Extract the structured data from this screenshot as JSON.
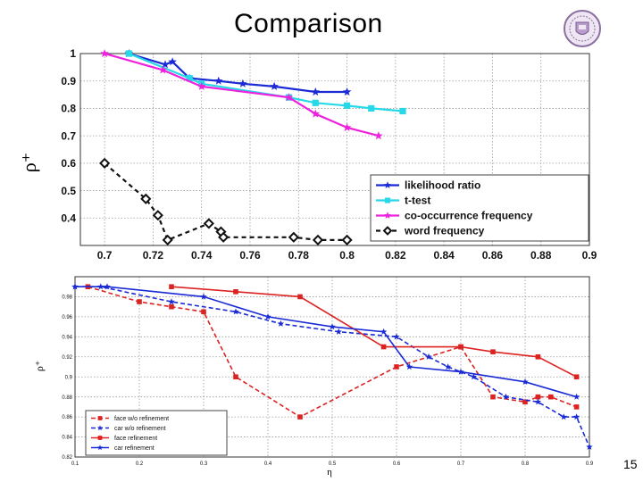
{
  "slide": {
    "title": "Comparison",
    "page_number": "15"
  },
  "chart_data": [
    {
      "type": "line",
      "xlabel": "",
      "ylabel": "ρ⁺",
      "xlim": [
        0.69,
        0.9
      ],
      "ylim": [
        0.3,
        1.0
      ],
      "x_ticks": [
        0.7,
        0.72,
        0.74,
        0.76,
        0.78,
        0.8,
        0.82,
        0.84,
        0.86,
        0.88,
        0.9
      ],
      "x_tick_labels": [
        "0.7",
        "0.72",
        "0.74",
        "0.76",
        "0.78",
        "0.8",
        "0.82",
        "0.84",
        "0.86",
        "0.88",
        "0.9"
      ],
      "y_ticks": [
        0.4,
        0.5,
        0.6,
        0.7,
        0.8,
        0.9,
        1.0
      ],
      "y_tick_labels": [
        "0.4",
        "0.5",
        "0.6",
        "0.7",
        "0.8",
        "0.9",
        "1"
      ],
      "grid": true,
      "legend_position": "bottom-right",
      "series": [
        {
          "name": "likelihood ratio",
          "color": "#1a2bd6",
          "dash": "solid",
          "marker": "star",
          "x": [
            0.71,
            0.725,
            0.728,
            0.735,
            0.747,
            0.757,
            0.77,
            0.787,
            0.8
          ],
          "y": [
            1.0,
            0.96,
            0.97,
            0.91,
            0.9,
            0.89,
            0.88,
            0.86,
            0.86
          ]
        },
        {
          "name": "t-test",
          "color": "#27d8e8",
          "dash": "solid",
          "marker": "square",
          "x": [
            0.71,
            0.735,
            0.74,
            0.776,
            0.787,
            0.8,
            0.81,
            0.823
          ],
          "y": [
            1.0,
            0.91,
            0.89,
            0.84,
            0.82,
            0.81,
            0.8,
            0.79
          ]
        },
        {
          "name": "co-occurrence frequency",
          "color": "#ee22dd",
          "dash": "solid",
          "marker": "star",
          "x": [
            0.7,
            0.724,
            0.74,
            0.776,
            0.787,
            0.8,
            0.813
          ],
          "y": [
            1.0,
            0.94,
            0.88,
            0.84,
            0.78,
            0.73,
            0.7
          ]
        },
        {
          "name": "word frequency",
          "color": "#111111",
          "dash": "dashed",
          "marker": "diamond",
          "x": [
            0.7,
            0.717,
            0.722,
            0.726,
            0.743,
            0.748,
            0.749,
            0.778,
            0.788,
            0.8
          ],
          "y": [
            0.6,
            0.47,
            0.41,
            0.32,
            0.38,
            0.35,
            0.33,
            0.33,
            0.32,
            0.32
          ]
        }
      ]
    },
    {
      "type": "line",
      "xlabel": "η",
      "ylabel": "ρ⁺",
      "xlim": [
        0.1,
        0.9
      ],
      "ylim": [
        0.82,
        1.0
      ],
      "x_ticks": [
        0.1,
        0.2,
        0.3,
        0.4,
        0.5,
        0.6,
        0.7,
        0.8,
        0.9
      ],
      "x_tick_labels": [
        "0.1",
        "0.2",
        "0.3",
        "0.4",
        "0.5",
        "0.6",
        "0.7",
        "0.8",
        "0.9"
      ],
      "y_ticks": [
        0.82,
        0.84,
        0.86,
        0.88,
        0.9,
        0.92,
        0.94,
        0.96,
        0.98
      ],
      "y_tick_labels": [
        "0.82",
        "0.84",
        "0.86",
        "0.88",
        "0.9",
        "0.92",
        "0.94",
        "0.96",
        "0.98"
      ],
      "grid": true,
      "legend_position": "bottom-left",
      "series": [
        {
          "name": "face w/o refinement",
          "color": "#dd2222",
          "dash": "dashed",
          "marker": "square",
          "x": [
            0.12,
            0.2,
            0.25,
            0.3,
            0.35,
            0.45,
            0.6,
            0.7,
            0.75,
            0.8,
            0.82,
            0.84,
            0.88
          ],
          "y": [
            0.99,
            0.975,
            0.97,
            0.965,
            0.9,
            0.86,
            0.91,
            0.93,
            0.88,
            0.875,
            0.88,
            0.88,
            0.87
          ]
        },
        {
          "name": "car w/o refinement",
          "color": "#1a2bd6",
          "dash": "dashed",
          "marker": "star",
          "x": [
            0.1,
            0.14,
            0.25,
            0.35,
            0.42,
            0.51,
            0.6,
            0.65,
            0.68,
            0.72,
            0.77,
            0.82,
            0.86,
            0.88,
            0.9
          ],
          "y": [
            0.99,
            0.99,
            0.975,
            0.965,
            0.953,
            0.945,
            0.94,
            0.92,
            0.91,
            0.9,
            0.88,
            0.875,
            0.86,
            0.86,
            0.83
          ]
        },
        {
          "name": "face refinement",
          "color": "#dd2222",
          "dash": "solid",
          "marker": "square",
          "x": [
            0.25,
            0.35,
            0.45,
            0.58,
            0.7,
            0.75,
            0.82,
            0.88
          ],
          "y": [
            0.99,
            0.985,
            0.98,
            0.93,
            0.93,
            0.925,
            0.92,
            0.9
          ]
        },
        {
          "name": "car refinement",
          "color": "#1a2bd6",
          "dash": "solid",
          "marker": "star",
          "x": [
            0.1,
            0.15,
            0.3,
            0.4,
            0.5,
            0.58,
            0.62,
            0.7,
            0.8,
            0.88
          ],
          "y": [
            0.99,
            0.99,
            0.98,
            0.96,
            0.95,
            0.945,
            0.91,
            0.905,
            0.895,
            0.88
          ]
        }
      ]
    }
  ]
}
